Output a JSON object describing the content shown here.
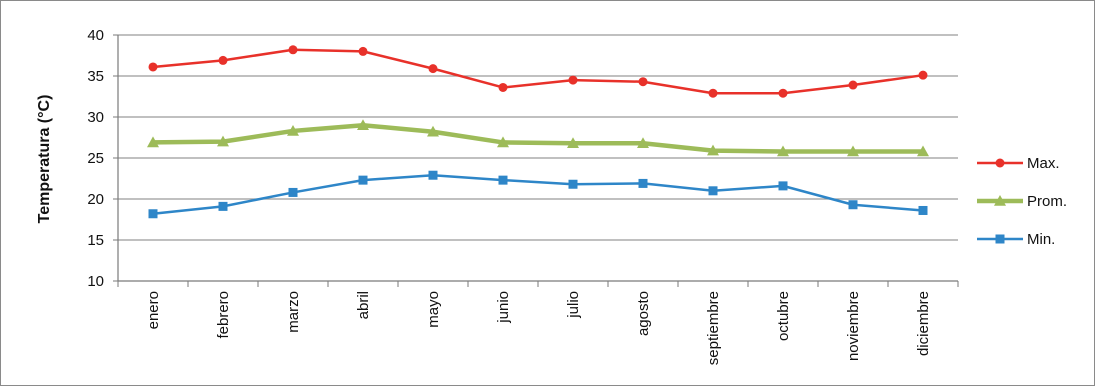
{
  "chart_data": {
    "type": "line",
    "title": "",
    "xlabel": "",
    "ylabel": "Temperatura (°C)",
    "ylim": [
      10,
      40
    ],
    "yticks": [
      10,
      15,
      20,
      25,
      30,
      35,
      40
    ],
    "grid": true,
    "legend_position": "right",
    "categories": [
      "enero",
      "febrero",
      "marzo",
      "abril",
      "mayo",
      "junio",
      "julio",
      "agosto",
      "septiembre",
      "octubre",
      "noviembre",
      "diciembre"
    ],
    "series": [
      {
        "name": "Max.",
        "color": "#e8312a",
        "marker": "circle",
        "values": [
          36.1,
          36.9,
          38.2,
          38.0,
          35.9,
          33.6,
          34.5,
          34.3,
          32.9,
          32.9,
          33.9,
          35.1
        ]
      },
      {
        "name": "Prom.",
        "color": "#9dbb59",
        "marker": "triangle",
        "values": [
          26.9,
          27.0,
          28.3,
          29.0,
          28.2,
          26.9,
          26.8,
          26.8,
          25.9,
          25.8,
          25.8,
          25.8
        ]
      },
      {
        "name": "Min.",
        "color": "#2e86c8",
        "marker": "square",
        "values": [
          18.2,
          19.1,
          20.8,
          22.3,
          22.9,
          22.3,
          21.8,
          21.9,
          21.0,
          21.6,
          19.3,
          18.6
        ]
      }
    ]
  }
}
